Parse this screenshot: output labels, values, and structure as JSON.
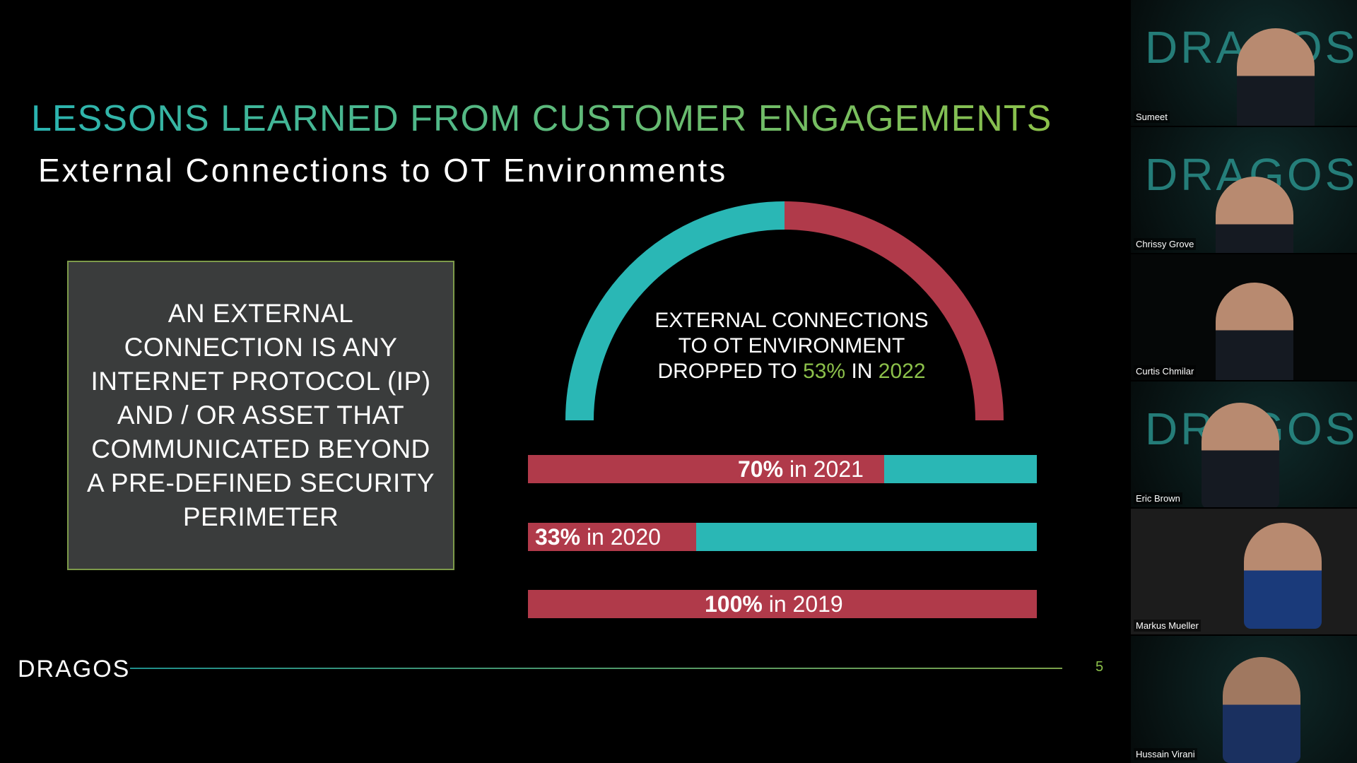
{
  "slide": {
    "title": "LESSONS LEARNED FROM CUSTOMER ENGAGEMENTS",
    "subtitle": "External Connections to OT Environments",
    "definition": "AN EXTERNAL CONNECTION IS ANY INTERNET PROTOCOL (IP) AND / OR ASSET THAT COMMUNICATED BEYOND A PRE-DEFINED SECURITY PERIMETER",
    "arc": {
      "line1": "EXTERNAL CONNECTIONS",
      "line2": "TO OT ENVIRONMENT",
      "line3_pre": "DROPPED TO ",
      "pct": "53%",
      "in": " IN ",
      "year": "2022",
      "value_percent": 53
    },
    "bars": [
      {
        "pct": "70%",
        "label": " in 2021",
        "value_percent": 70
      },
      {
        "pct": "33%",
        "label": " in 2020",
        "value_percent": 33
      },
      {
        "pct": "100%",
        "label": " in 2019",
        "value_percent": 100
      }
    ],
    "logo": "DRAGOS",
    "page_number": "5"
  },
  "colors": {
    "red": "#b03a4a",
    "teal": "#2ab7b5",
    "green": "#8cc04a"
  },
  "participants": [
    {
      "name": "Sumeet"
    },
    {
      "name": "Chrissy Grove"
    },
    {
      "name": "Curtis Chmilar"
    },
    {
      "name": "Eric Brown"
    },
    {
      "name": "Markus Mueller"
    },
    {
      "name": "Hussain Virani"
    }
  ]
}
